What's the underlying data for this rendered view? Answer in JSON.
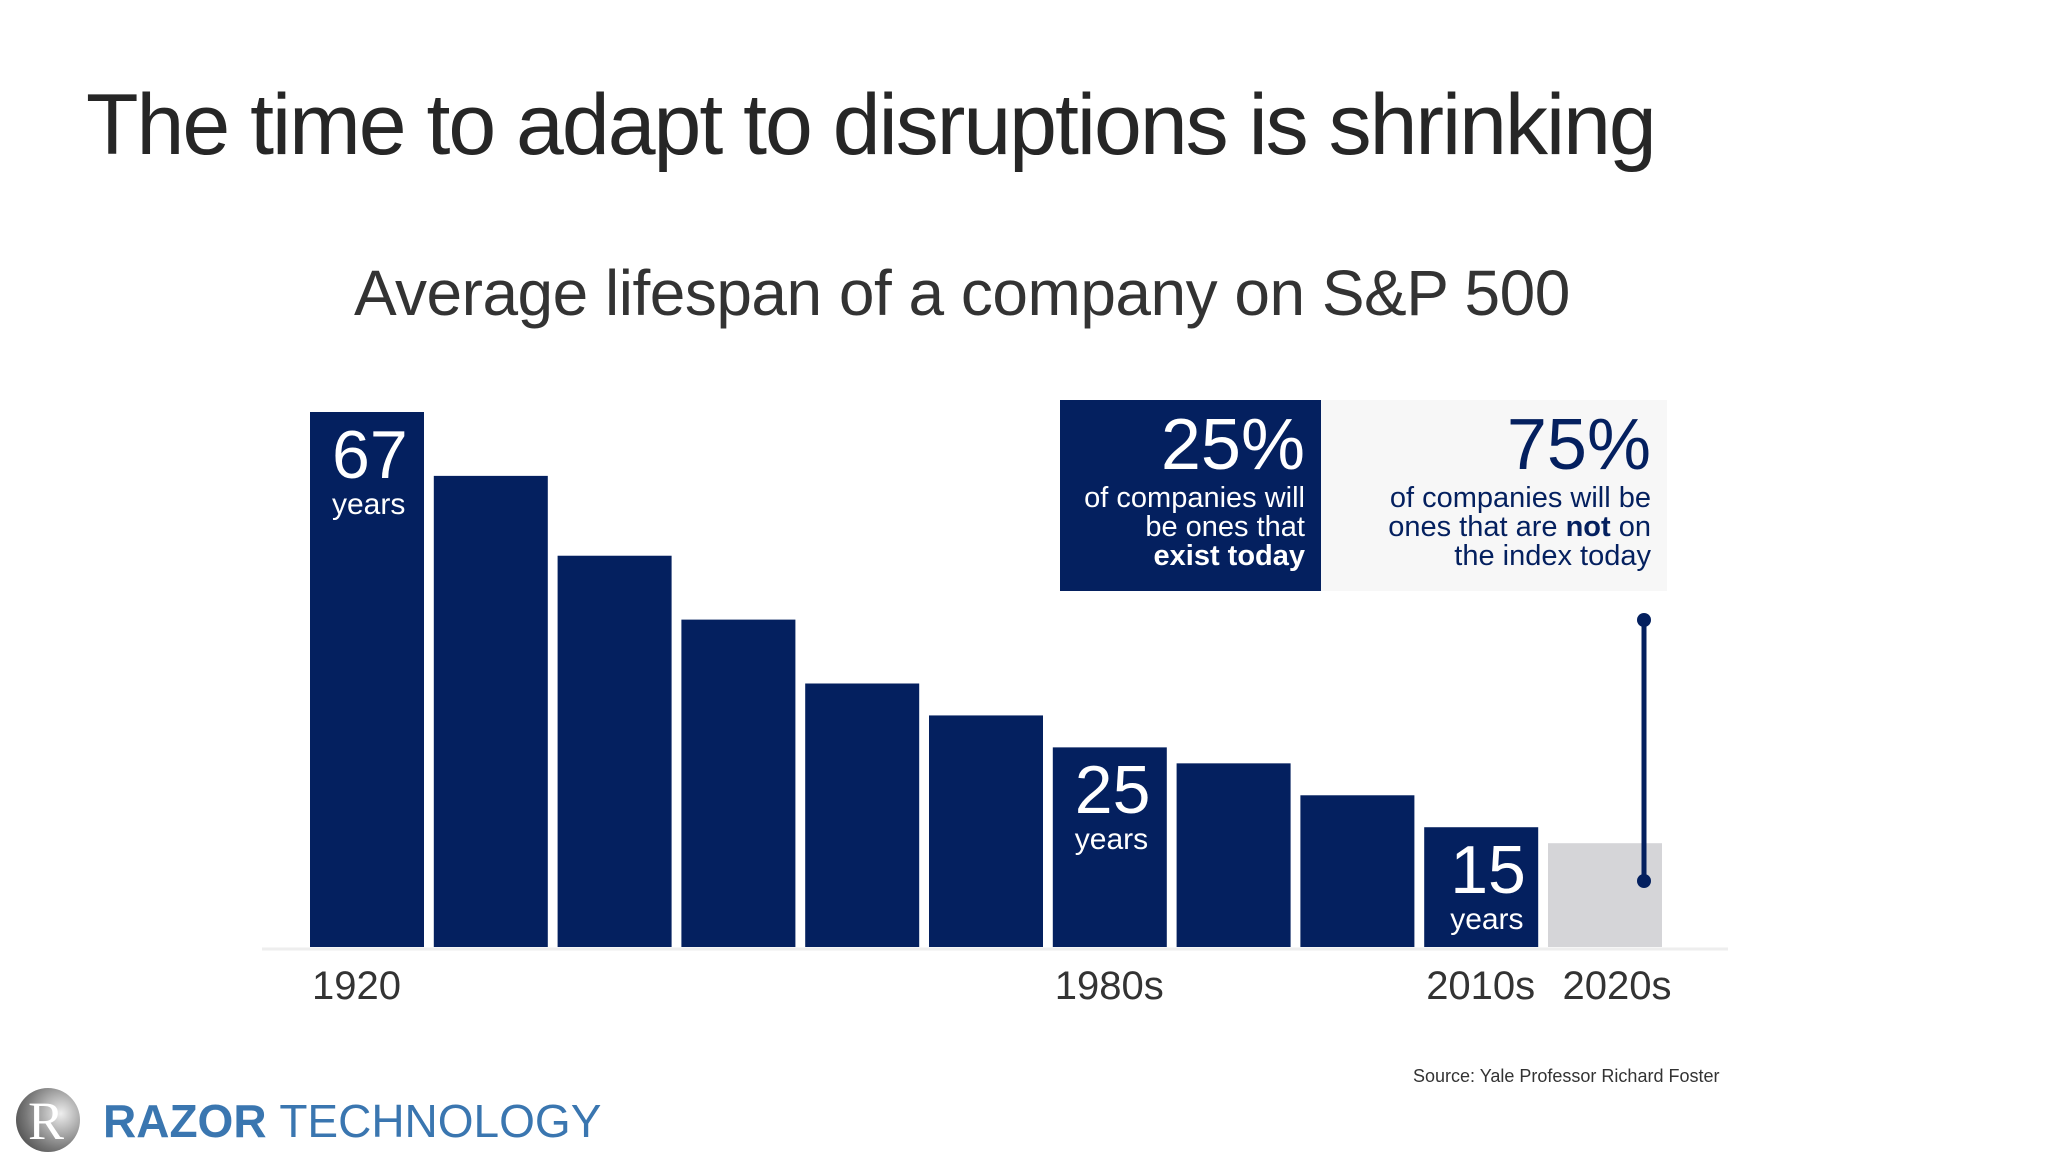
{
  "slide": {
    "title": "The time to adapt to disruptions is shrinking",
    "source": "Source: Yale Professor Richard Foster",
    "logo": {
      "brand_bold": "RAZOR",
      "brand_light": "TECHNOLOGY",
      "mark": "R",
      "color": "#3a76b0"
    }
  },
  "chart_data": {
    "type": "bar",
    "title": "Average lifespan of a company on S&P 500",
    "categories": [
      "1920",
      "",
      "",
      "",
      "",
      "",
      "1980s",
      "",
      "",
      "2010s",
      "2020s"
    ],
    "values": [
      67,
      59,
      49,
      41,
      33,
      29,
      25,
      23,
      19,
      15,
      13
    ],
    "ylim": [
      0,
      67
    ],
    "grid": false,
    "bar_labels": [
      {
        "index": 0,
        "value": "67",
        "unit": "years"
      },
      {
        "index": 6,
        "value": "25",
        "unit": "years"
      },
      {
        "index": 9,
        "value": "15",
        "unit": "years"
      }
    ],
    "colors": {
      "bar": "#04205f",
      "projected_bar": "#d5d5d8",
      "axis": "#eeeeee"
    },
    "callouts": [
      {
        "pct": "25%",
        "line1": "of companies will",
        "line2": "be ones that",
        "line3_bold": "exist today"
      },
      {
        "pct": "75%",
        "line1": "of companies will be",
        "line2_pre": "ones that are ",
        "line2_bold": "not",
        "line2_post": " on",
        "line3": "the index today"
      }
    ]
  }
}
